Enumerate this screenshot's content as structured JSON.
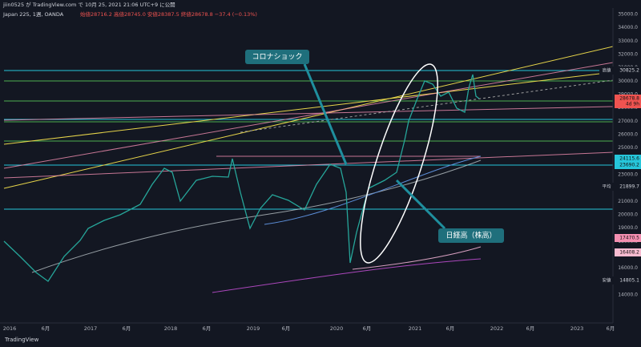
{
  "header": {
    "publisher": "jiin0525 が TradingView.com で 10月 25, 2021 21:06 UTC+9 に公開",
    "symbol": "Japan 225, 1週, OANDA",
    "ohlc": "始値28716.2 高値28745.0 安値28387.5 終値28678.8 −37.4 (−0.13%)"
  },
  "price_axis": [
    "35000.0",
    "34000.0",
    "33000.0",
    "32000.0",
    "31000.0",
    "30000.0",
    "29000.0",
    "28000.0",
    "27000.0",
    "26000.0",
    "25000.0",
    "24000.0",
    "23000.0",
    "22000.0",
    "21000.0",
    "20000.0",
    "19000.0",
    "18000.0",
    "17000.0",
    "16000.0",
    "15000.0",
    "14000.0"
  ],
  "time_axis": [
    "2016",
    "6月",
    "2017",
    "6月",
    "2018",
    "6月",
    "2019",
    "6月",
    "2020",
    "6月",
    "2021",
    "6月",
    "2022",
    "6月",
    "2023",
    "6月"
  ],
  "price_labels": [
    {
      "tag": "高値",
      "text": "30825.2"
    },
    {
      "tag": "",
      "text": "28678.8"
    },
    {
      "tag": "",
      "text": "4d 9h"
    },
    {
      "tag": "",
      "text": "24115.6"
    },
    {
      "tag": "",
      "text": "23690.2"
    },
    {
      "tag": "平均",
      "text": "21899.7"
    },
    {
      "tag": "",
      "text": "17470.5"
    },
    {
      "tag": "",
      "text": "16408.2"
    },
    {
      "tag": "安値",
      "text": "14805.1"
    }
  ],
  "annotations": [
    "コロナショック",
    "日経高（株高）"
  ],
  "footer": "TradingView"
}
